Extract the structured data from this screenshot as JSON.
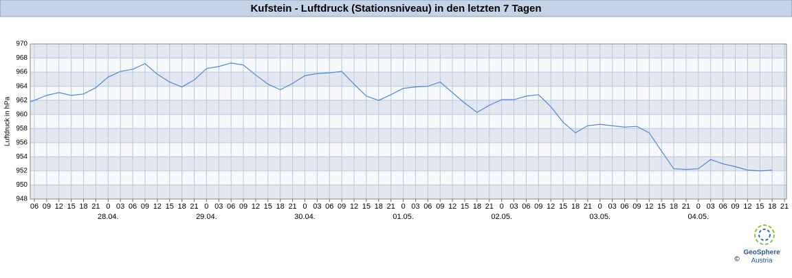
{
  "chart_data": {
    "type": "line",
    "title": "Kufstein - Luftdruck (Stationsniveau) in den letzten 7 Tagen",
    "y_label": "Luftdruck in hPa",
    "color": "#4f86d8",
    "grid": true,
    "xlim": [
      -19,
      165.5
    ],
    "ylim": [
      948,
      970
    ],
    "yticks": [
      948,
      950,
      952,
      954,
      956,
      958,
      960,
      962,
      964,
      966,
      968,
      970
    ],
    "xticks": [
      {
        "value": -18,
        "label": "06"
      },
      {
        "value": -15,
        "label": "09"
      },
      {
        "value": -12,
        "label": "12"
      },
      {
        "value": -9,
        "label": "15"
      },
      {
        "value": -6,
        "label": "18"
      },
      {
        "value": -3,
        "label": "21"
      },
      {
        "value": 0,
        "label": "0"
      },
      {
        "value": 3,
        "label": "03"
      },
      {
        "value": 6,
        "label": "06"
      },
      {
        "value": 9,
        "label": "09"
      },
      {
        "value": 12,
        "label": "12"
      },
      {
        "value": 15,
        "label": "15"
      },
      {
        "value": 18,
        "label": "18"
      },
      {
        "value": 21,
        "label": "21"
      },
      {
        "value": 24,
        "label": "0"
      },
      {
        "value": 27,
        "label": "03"
      },
      {
        "value": 30,
        "label": "06"
      },
      {
        "value": 33,
        "label": "09"
      },
      {
        "value": 36,
        "label": "12"
      },
      {
        "value": 39,
        "label": "15"
      },
      {
        "value": 42,
        "label": "18"
      },
      {
        "value": 45,
        "label": "21"
      },
      {
        "value": 48,
        "label": "0"
      },
      {
        "value": 51,
        "label": "03"
      },
      {
        "value": 54,
        "label": "06"
      },
      {
        "value": 57,
        "label": "09"
      },
      {
        "value": 60,
        "label": "12"
      },
      {
        "value": 63,
        "label": "15"
      },
      {
        "value": 66,
        "label": "18"
      },
      {
        "value": 69,
        "label": "21"
      },
      {
        "value": 72,
        "label": "0"
      },
      {
        "value": 75,
        "label": "03"
      },
      {
        "value": 78,
        "label": "06"
      },
      {
        "value": 81,
        "label": "09"
      },
      {
        "value": 84,
        "label": "12"
      },
      {
        "value": 87,
        "label": "15"
      },
      {
        "value": 90,
        "label": "18"
      },
      {
        "value": 93,
        "label": "21"
      },
      {
        "value": 96,
        "label": "0"
      },
      {
        "value": 99,
        "label": "03"
      },
      {
        "value": 102,
        "label": "06"
      },
      {
        "value": 105,
        "label": "09"
      },
      {
        "value": 108,
        "label": "12"
      },
      {
        "value": 111,
        "label": "15"
      },
      {
        "value": 114,
        "label": "18"
      },
      {
        "value": 117,
        "label": "21"
      },
      {
        "value": 120,
        "label": "0"
      },
      {
        "value": 123,
        "label": "03"
      },
      {
        "value": 126,
        "label": "06"
      },
      {
        "value": 129,
        "label": "09"
      },
      {
        "value": 132,
        "label": "12"
      },
      {
        "value": 135,
        "label": "15"
      },
      {
        "value": 138,
        "label": "18"
      },
      {
        "value": 141,
        "label": "21"
      },
      {
        "value": 144,
        "label": "0"
      },
      {
        "value": 147,
        "label": "03"
      },
      {
        "value": 150,
        "label": "06"
      },
      {
        "value": 153,
        "label": "09"
      },
      {
        "value": 156,
        "label": "12"
      },
      {
        "value": 159,
        "label": "15"
      },
      {
        "value": 162,
        "label": "18"
      },
      {
        "value": 165,
        "label": "21"
      }
    ],
    "day_labels": [
      {
        "value": 0,
        "label": "28.04."
      },
      {
        "value": 24,
        "label": "29.04."
      },
      {
        "value": 48,
        "label": "30.04."
      },
      {
        "value": 72,
        "label": "01.05."
      },
      {
        "value": 96,
        "label": "02.05."
      },
      {
        "value": 120,
        "label": "03.05."
      },
      {
        "value": 144,
        "label": "04.05."
      }
    ],
    "x": [
      -19,
      -18,
      -15,
      -12,
      -9,
      -6,
      -3,
      0,
      3,
      6,
      9,
      12,
      15,
      18,
      21,
      24,
      27,
      30,
      33,
      36,
      39,
      42,
      45,
      48,
      51,
      54,
      57,
      60,
      63,
      66,
      69,
      72,
      75,
      78,
      81,
      84,
      87,
      90,
      93,
      96,
      99,
      102,
      105,
      108,
      111,
      114,
      117,
      120,
      123,
      126,
      129,
      132,
      135,
      138,
      141,
      144,
      147,
      150,
      153,
      156,
      159,
      162
    ],
    "values": [
      961.8,
      962.0,
      962.7,
      963.1,
      962.7,
      962.9,
      963.8,
      965.3,
      966.1,
      966.4,
      967.2,
      965.7,
      964.6,
      963.9,
      964.9,
      966.5,
      966.8,
      967.3,
      967.0,
      965.6,
      964.3,
      963.5,
      964.4,
      965.5,
      965.8,
      965.9,
      966.1,
      964.3,
      962.6,
      962.0,
      962.8,
      963.7,
      963.9,
      964.0,
      964.6,
      963.1,
      961.6,
      960.3,
      961.3,
      962.1,
      962.1,
      962.6,
      962.8,
      961.1,
      958.9,
      957.4,
      958.4,
      958.6,
      958.4,
      958.2,
      958.3,
      957.4,
      954.8,
      952.3,
      952.2,
      952.3,
      953.6,
      953.0,
      952.6,
      952.1,
      952.0,
      952.1
    ]
  },
  "logo": {
    "name": "GeoSphere",
    "sub": "Austria",
    "copyright": "©"
  }
}
